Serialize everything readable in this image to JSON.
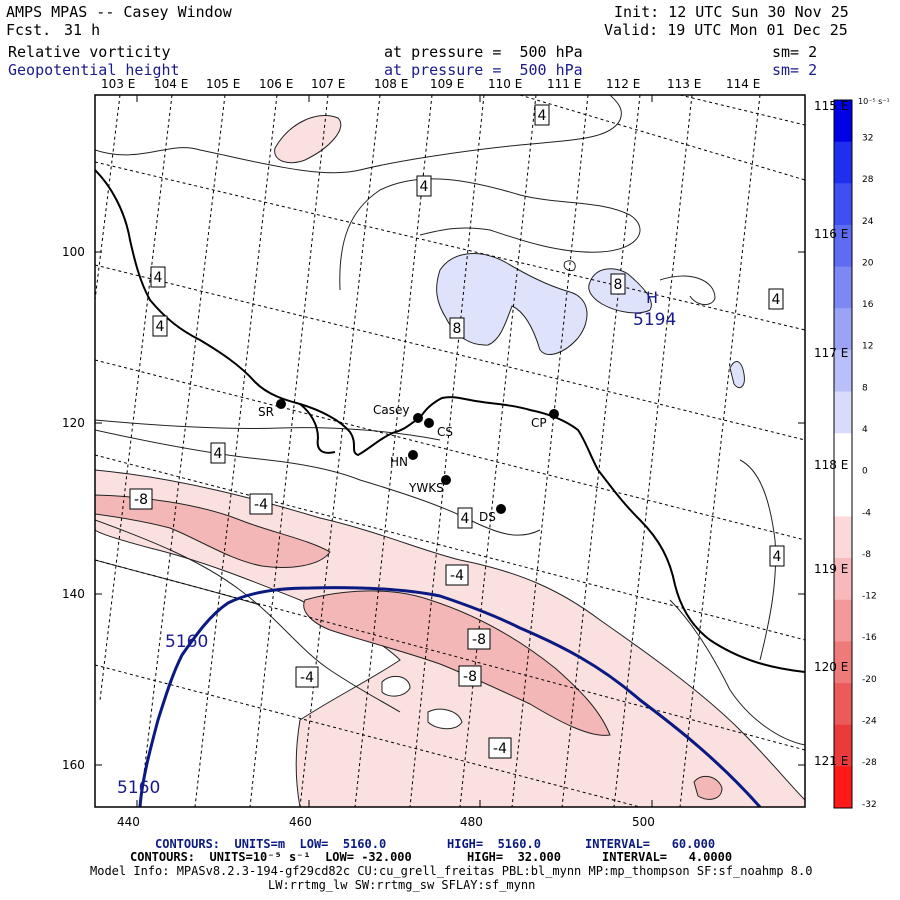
{
  "header": {
    "title": "AMPS MPAS -- Casey Window",
    "fcst_label": "Fcst.",
    "fcst_value": "31 h",
    "init": "Init: 12 UTC Sun 30 Nov 25",
    "valid": "Valid: 19 UTC Mon 01 Dec 25",
    "field1_name": "Relative vorticity",
    "field1_pressure": "at pressure =  500 hPa",
    "field1_sm": "sm= 2",
    "field2_name": "Geopotential height",
    "field2_pressure": "at pressure =  500 hPa",
    "field2_sm": "sm= 2"
  },
  "axes": {
    "top_lon_labels": [
      "103 E",
      "104 E",
      "105 E",
      "106 E",
      "107 E",
      "108 E",
      "109 E",
      "110 E",
      "111 E",
      "112 E",
      "113 E",
      "114 E"
    ],
    "right_lon_labels": [
      "115 E",
      "116 E",
      "117 E",
      "118 E",
      "119 E",
      "120 E",
      "121 E"
    ],
    "x_ticks": [
      "440",
      "460",
      "480",
      "500"
    ],
    "y_ticks": [
      "100",
      "120",
      "140",
      "160"
    ]
  },
  "colorbar": {
    "units": "10⁻⁵ s⁻¹",
    "levels": [
      "32",
      "28",
      "24",
      "20",
      "16",
      "12",
      "8",
      "4",
      "0",
      "-4",
      "-8",
      "-12",
      "-16",
      "-20",
      "-24",
      "-28",
      "-32"
    ],
    "colors": [
      "#0000e6",
      "#1f2ff0",
      "#3f50f2",
      "#5d6cf2",
      "#7c88f4",
      "#9aa3f6",
      "#b9bff8",
      "#d8dbfb",
      "#ffffff",
      "#ffffff",
      "#fbd9d9",
      "#f7b9b9",
      "#f39999",
      "#f07a7a",
      "#ed5a5a",
      "#ea3a3a",
      "#ff1a1a"
    ]
  },
  "stations": [
    {
      "id": "SR"
    },
    {
      "id": "Casey"
    },
    {
      "id": "CS"
    },
    {
      "id": "CP"
    },
    {
      "id": "HN"
    },
    {
      "id": "YWKS"
    },
    {
      "id": "DS"
    }
  ],
  "contour_labels": {
    "vorticity": [
      "4",
      "4",
      "4",
      "4",
      "8",
      "8",
      "4",
      "4",
      "-8",
      "-4",
      "4",
      "-4",
      "-8",
      "-8",
      "-4",
      "-4",
      "4"
    ],
    "height_low": "5160",
    "height_high_marker": "H",
    "height_high_value": "5194"
  },
  "footer": {
    "line1_prefix": "CONTOURS:  UNITS=m  LOW=  5160.0",
    "line1_high": "HIGH=  5160.0",
    "line1_interval": "INTERVAL=   60.000",
    "line2_prefix": "CONTOURS:  UNITS=10⁻⁵ s⁻¹  LOW= -32.000",
    "line2_high": "HIGH=  32.000",
    "line2_interval": "INTERVAL=   4.0000",
    "line3": "Model Info: MPASv8.2.3-194-gf29cd82c CU:cu_grell_freitas PBL:bl_mynn MP:mp_thompson SF:sf_noahmp 8.0",
    "line4": "LW:rrtmg_lw SW:rrtmg_sw SFLAY:sf_mynn"
  }
}
